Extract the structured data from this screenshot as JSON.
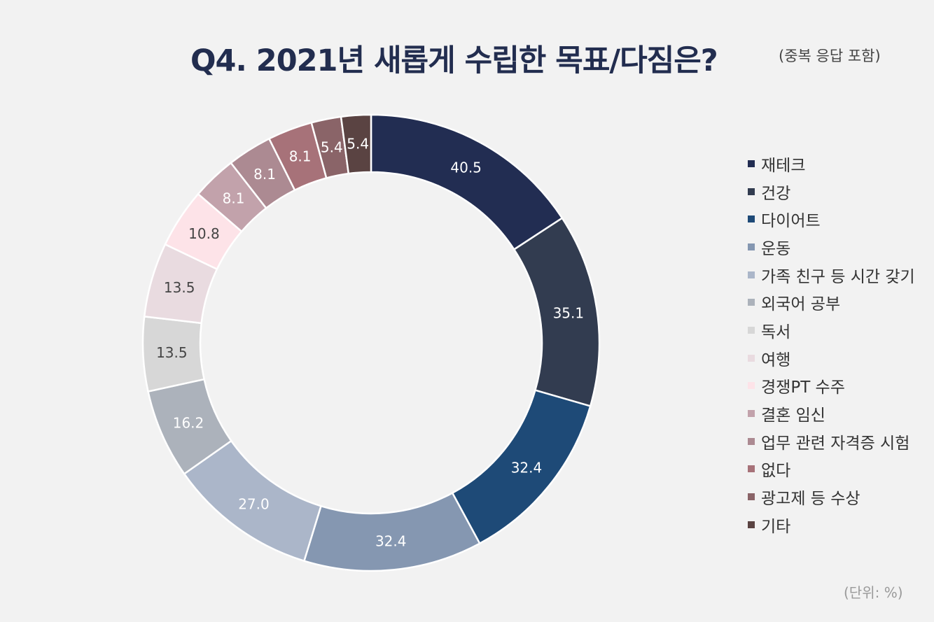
{
  "chart_data": {
    "type": "pie",
    "style": "donut",
    "title": "Q4. 2021년 새롭게 수립한 목표/다짐은?",
    "subtitle": "(중복 응답 포함)",
    "unit_note": "(단위: %)",
    "legend_position": "right",
    "categories": [
      "재테크",
      "건강",
      "다이어트",
      "운동",
      "가족 친구 등 시간 갖기",
      "외국어 공부",
      "독서",
      "여행",
      "경쟁PT 수주",
      "결혼 임신",
      "업무 관련 자격증 시험",
      "없다",
      "광고제 등 수상",
      "기타"
    ],
    "values": [
      40.5,
      35.1,
      32.4,
      32.4,
      27.0,
      16.2,
      13.5,
      13.5,
      10.8,
      8.1,
      8.1,
      8.1,
      5.4,
      5.4
    ],
    "value_labels": [
      "40.5",
      "35.1",
      "32.4",
      "32.4",
      "27.0",
      "16.2",
      "13.5",
      "13.5",
      "10.8",
      "8.1",
      "8.1",
      "8.1",
      "5.4",
      "5.4"
    ],
    "colors": [
      "#222d52",
      "#323c50",
      "#1e4a77",
      "#8597b1",
      "#abb6c9",
      "#acb2bb",
      "#d7d7d7",
      "#e9dbe0",
      "#fde3e8",
      "#c2a2ab",
      "#ac8a92",
      "#a77279",
      "#8a6468",
      "#5a4342"
    ],
    "label_colors": [
      "#ffffff",
      "#ffffff",
      "#ffffff",
      "#ffffff",
      "#ffffff",
      "#ffffff",
      "#444444",
      "#444444",
      "#444444",
      "#ffffff",
      "#ffffff",
      "#ffffff",
      "#ffffff",
      "#ffffff"
    ]
  }
}
